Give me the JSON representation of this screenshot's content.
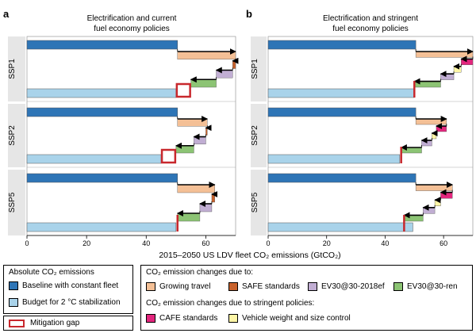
{
  "colors": {
    "baseline": "#2e75b6",
    "budget": "#a9d3ea",
    "travel": "#f4c096",
    "safe": "#c8622c",
    "ev2018": "#c1aed3",
    "evren": "#8cc474",
    "cafe": "#e3267d",
    "weight": "#fdf5a6",
    "gap": "#c8282d",
    "panel_strip": "#e6e6e6"
  },
  "chart_data": [
    {
      "type": "bar",
      "panel_letter": "a",
      "title_line1": "Electrification and current",
      "title_line2": "fuel economy policies",
      "xlim": [
        0,
        70
      ],
      "xticks": [
        "0",
        "20",
        "40",
        "60"
      ],
      "rows": [
        {
          "label": "SSP1",
          "baseline": 50.5,
          "budget": 50,
          "chain": [
            {
              "type": "travel",
              "from": 50.5,
              "to": 70
            },
            {
              "type": "safe",
              "from": 70,
              "to": 69
            },
            {
              "type": "ev2018",
              "from": 69,
              "to": 63.5
            },
            {
              "type": "evren",
              "from": 63.5,
              "to": 55
            }
          ],
          "final": 55
        },
        {
          "label": "SSP2",
          "baseline": 50.5,
          "budget": 45,
          "chain": [
            {
              "type": "travel",
              "from": 50.5,
              "to": 60.5
            },
            {
              "type": "safe",
              "from": 60.5,
              "to": 60
            },
            {
              "type": "ev2018",
              "from": 60,
              "to": 56
            },
            {
              "type": "evren",
              "from": 56,
              "to": 50
            }
          ],
          "final": 50
        },
        {
          "label": "SSP5",
          "baseline": 50.5,
          "budget": 50,
          "chain": [
            {
              "type": "travel",
              "from": 50.5,
              "to": 63
            },
            {
              "type": "safe",
              "from": 63,
              "to": 62
            },
            {
              "type": "ev2018",
              "from": 62,
              "to": 58
            },
            {
              "type": "evren",
              "from": 58,
              "to": 50.5
            }
          ],
          "final": 50.5
        }
      ]
    },
    {
      "type": "bar",
      "panel_letter": "b",
      "title_line1": "Electrification and stringent",
      "title_line2": "fuel economy policies",
      "xlim": [
        0,
        70
      ],
      "xticks": [
        "0",
        "20",
        "40",
        "60"
      ],
      "rows": [
        {
          "label": "SSP1",
          "baseline": 50.5,
          "budget": 50,
          "chain": [
            {
              "type": "travel",
              "from": 50.5,
              "to": 70
            },
            {
              "type": "cafe",
              "from": 70,
              "to": 66
            },
            {
              "type": "weight",
              "from": 66,
              "to": 63.5
            },
            {
              "type": "ev2018",
              "from": 63.5,
              "to": 59
            },
            {
              "type": "evren",
              "from": 59,
              "to": 50
            }
          ],
          "final": 50
        },
        {
          "label": "SSP2",
          "baseline": 50.5,
          "budget": 45,
          "chain": [
            {
              "type": "travel",
              "from": 50.5,
              "to": 61
            },
            {
              "type": "cafe",
              "from": 61,
              "to": 57.5
            },
            {
              "type": "weight",
              "from": 57.5,
              "to": 56
            },
            {
              "type": "ev2018",
              "from": 56,
              "to": 52.5
            },
            {
              "type": "evren",
              "from": 52.5,
              "to": 45.5
            }
          ],
          "final": 45.5
        },
        {
          "label": "SSP5",
          "baseline": 50.5,
          "budget": 49.5,
          "chain": [
            {
              "type": "travel",
              "from": 50.5,
              "to": 63
            },
            {
              "type": "cafe",
              "from": 63,
              "to": 59
            },
            {
              "type": "weight",
              "from": 59,
              "to": 57
            },
            {
              "type": "ev2018",
              "from": 57,
              "to": 53
            },
            {
              "type": "evren",
              "from": 53,
              "to": 46.5
            }
          ],
          "final": 46.5
        }
      ]
    }
  ],
  "xlabel": "2015–2050 US LDV fleet CO₂ emissions (GtCO₂)",
  "legend": {
    "absolute_title": "Absolute CO₂ emissions",
    "baseline_label": "Baseline with constant fleet",
    "budget_label": "Budget for 2 °C stabilization",
    "gap_label": "Mitigation gap",
    "changes_title": "CO₂ emission changes due to:",
    "travel_label": "Growing travel",
    "safe_label": "SAFE standards",
    "ev2018_label": "EV30@30-2018ef",
    "evren_label": "EV30@30-ren",
    "stringent_title": "CO₂ emission changes due to stringent policies:",
    "cafe_label": "CAFE standards",
    "weight_label": "Vehicle weight and size control"
  }
}
